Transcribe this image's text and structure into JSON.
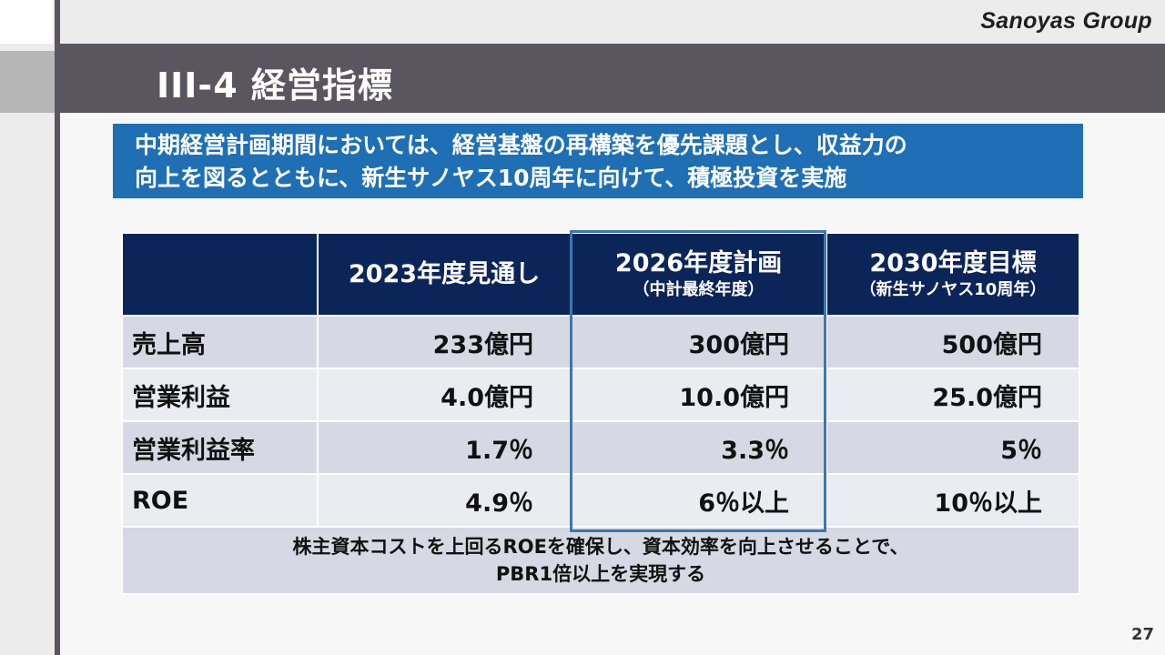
{
  "brand": {
    "logo_text": "Sanoyas Group"
  },
  "header": {
    "title": "III-4 経営指標"
  },
  "banner": {
    "line1": "中期経営計画期間においては、経営基盤の再構築を優先課題とし、収益力の",
    "line2": "向上を図るとともに、新生サノヤス10周年に向けて、積極投資を実施"
  },
  "table": {
    "columns": [
      {
        "main": "",
        "sub": ""
      },
      {
        "main": "2023年度見通し",
        "sub": ""
      },
      {
        "main": "2026年度計画",
        "sub": "（中計最終年度）"
      },
      {
        "main": "2030年度目標",
        "sub": "（新生サノヤス10周年）"
      }
    ],
    "rows": [
      {
        "label": "売上高",
        "values": [
          "233億円",
          "300億円",
          "500億円"
        ]
      },
      {
        "label": "営業利益",
        "values": [
          "4.0億円",
          "10.0億円",
          "25.0億円"
        ]
      },
      {
        "label": "営業利益率",
        "values": [
          "1.7％",
          "3.3％",
          "5％"
        ]
      },
      {
        "label": "ROE",
        "values": [
          "4.9％",
          "6％以上",
          "10％以上"
        ]
      }
    ],
    "note": {
      "line1": "株主資本コストを上回るROEを確保し、資本効率を向上させることで、",
      "line2": "PBR1倍以上を実現する"
    },
    "highlighted_column": "2026年度計画"
  },
  "footer": {
    "page_number": "27"
  },
  "colors": {
    "header_bar": "#5a5660",
    "banner": "#1f6fb5",
    "table_header": "#0c2559",
    "row_dark": "#d6d9e3",
    "row_light": "#eaecf2",
    "highlight_border": "#3c77ad"
  }
}
